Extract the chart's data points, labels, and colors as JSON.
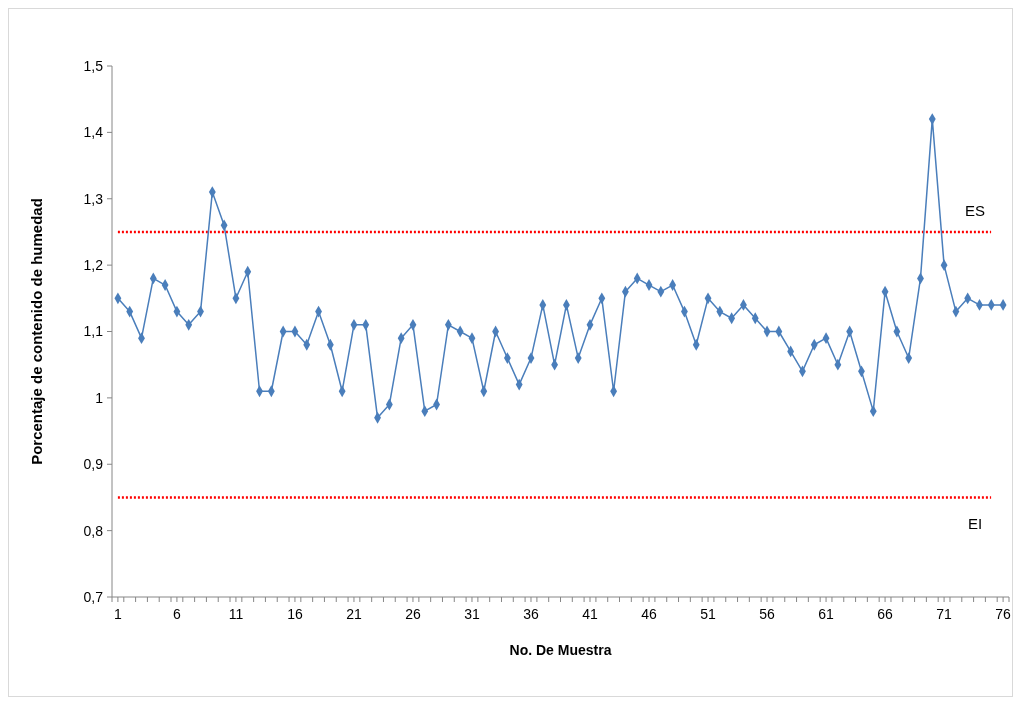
{
  "chart_data": {
    "type": "line",
    "xlabel": "No. De Muestra",
    "ylabel": "Porcentaje de contenido de humedad",
    "x": [
      1,
      2,
      3,
      4,
      5,
      6,
      7,
      8,
      9,
      10,
      11,
      12,
      13,
      14,
      15,
      16,
      17,
      18,
      19,
      20,
      21,
      22,
      23,
      24,
      25,
      26,
      27,
      28,
      29,
      30,
      31,
      32,
      33,
      34,
      35,
      36,
      37,
      38,
      39,
      40,
      41,
      42,
      43,
      44,
      45,
      46,
      47,
      48,
      49,
      50,
      51,
      52,
      53,
      54,
      55,
      56,
      57,
      58,
      59,
      60,
      61,
      62,
      63,
      64,
      65,
      66,
      67,
      68,
      69,
      70,
      71,
      72,
      73,
      74,
      75,
      76
    ],
    "xlim": [
      0.5,
      76.5
    ],
    "xticks": [
      1,
      6,
      11,
      16,
      21,
      26,
      31,
      36,
      41,
      46,
      51,
      56,
      61,
      66,
      71,
      76,
      {
        "value": 0.5,
        "label": null
      },
      {
        "value": 1.5,
        "label": null
      },
      {
        "value": 2.5,
        "label": null
      },
      {
        "value": 3.5,
        "label": null
      },
      {
        "value": 4.5,
        "label": null
      },
      {
        "value": 5.5,
        "label": null
      },
      {
        "value": 6.5,
        "label": null
      },
      {
        "value": 7.5,
        "label": null
      },
      {
        "value": 8.5,
        "label": null
      },
      {
        "value": 9.5,
        "label": null
      },
      {
        "value": 10.5,
        "label": null
      },
      {
        "value": 11.5,
        "label": null
      },
      {
        "value": 12.5,
        "label": null
      },
      {
        "value": 13.5,
        "label": null
      },
      {
        "value": 14.5,
        "label": null
      },
      {
        "value": 15.5,
        "label": null
      },
      {
        "value": 16.5,
        "label": null
      },
      {
        "value": 17.5,
        "label": null
      },
      {
        "value": 18.5,
        "label": null
      },
      {
        "value": 19.5,
        "label": null
      },
      {
        "value": 20.5,
        "label": null
      },
      {
        "value": 21.5,
        "label": null
      },
      {
        "value": 22.5,
        "label": null
      },
      {
        "value": 23.5,
        "label": null
      },
      {
        "value": 24.5,
        "label": null
      },
      {
        "value": 25.5,
        "label": null
      },
      {
        "value": 26.5,
        "label": null
      },
      {
        "value": 27.5,
        "label": null
      },
      {
        "value": 28.5,
        "label": null
      },
      {
        "value": 29.5,
        "label": null
      },
      {
        "value": 30.5,
        "label": null
      },
      {
        "value": 31.5,
        "label": null
      },
      {
        "value": 32.5,
        "label": null
      },
      {
        "value": 33.5,
        "label": null
      },
      {
        "value": 34.5,
        "label": null
      },
      {
        "value": 35.5,
        "label": null
      },
      {
        "value": 36.5,
        "label": null
      },
      {
        "value": 37.5,
        "label": null
      },
      {
        "value": 38.5,
        "label": null
      },
      {
        "value": 39.5,
        "label": null
      },
      {
        "value": 40.5,
        "label": null
      },
      {
        "value": 41.5,
        "label": null
      },
      {
        "value": 42.5,
        "label": null
      },
      {
        "value": 43.5,
        "label": null
      },
      {
        "value": 44.5,
        "label": null
      },
      {
        "value": 45.5,
        "label": null
      },
      {
        "value": 46.5,
        "label": null
      },
      {
        "value": 47.5,
        "label": null
      },
      {
        "value": 48.5,
        "label": null
      },
      {
        "value": 49.5,
        "label": null
      },
      {
        "value": 50.5,
        "label": null
      },
      {
        "value": 51.5,
        "label": null
      },
      {
        "value": 52.5,
        "label": null
      },
      {
        "value": 53.5,
        "label": null
      },
      {
        "value": 54.5,
        "label": null
      },
      {
        "value": 55.5,
        "label": null
      },
      {
        "value": 56.5,
        "label": null
      },
      {
        "value": 57.5,
        "label": null
      },
      {
        "value": 58.5,
        "label": null
      },
      {
        "value": 59.5,
        "label": null
      },
      {
        "value": 60.5,
        "label": null
      },
      {
        "value": 61.5,
        "label": null
      },
      {
        "value": 62.5,
        "label": null
      },
      {
        "value": 63.5,
        "label": null
      },
      {
        "value": 64.5,
        "label": null
      },
      {
        "value": 65.5,
        "label": null
      },
      {
        "value": 66.5,
        "label": null
      },
      {
        "value": 67.5,
        "label": null
      },
      {
        "value": 68.5,
        "label": null
      },
      {
        "value": 69.5,
        "label": null
      },
      {
        "value": 70.5,
        "label": null
      },
      {
        "value": 71.5,
        "label": null
      },
      {
        "value": 72.5,
        "label": null
      },
      {
        "value": 73.5,
        "label": null
      },
      {
        "value": 74.5,
        "label": null
      },
      {
        "value": 75.5,
        "label": null
      },
      {
        "value": 76.5,
        "label": null
      }
    ],
    "series": [
      {
        "color": "#4a7ebb",
        "values": [
          1.15,
          1.13,
          1.09,
          1.18,
          1.17,
          1.13,
          1.11,
          1.13,
          1.31,
          1.26,
          1.15,
          1.19,
          1.01,
          1.01,
          1.1,
          1.1,
          1.08,
          1.13,
          1.08,
          1.01,
          1.11,
          1.11,
          0.97,
          0.99,
          1.09,
          1.11,
          0.98,
          0.99,
          1.11,
          1.1,
          1.09,
          1.01,
          1.1,
          1.06,
          1.02,
          1.06,
          1.14,
          1.05,
          1.14,
          1.06,
          1.11,
          1.15,
          1.01,
          1.16,
          1.18,
          1.17,
          1.16,
          1.17,
          1.13,
          1.08,
          1.15,
          1.13,
          1.12,
          1.14,
          1.12,
          1.1,
          1.1,
          1.07,
          1.04,
          1.08,
          1.09,
          1.05,
          1.1,
          1.04,
          0.98,
          1.16,
          1.1,
          1.06,
          1.18,
          1.42,
          1.2,
          1.13,
          1.15,
          1.14,
          1.14,
          1.14
        ]
      }
    ],
    "ylim": [
      0.7,
      1.5
    ],
    "yticks": [
      {
        "value": 0.7,
        "label": "0,7"
      },
      {
        "value": 0.8,
        "label": "0,8"
      },
      {
        "value": 0.9,
        "label": "0,9"
      },
      {
        "value": 1,
        "label": "1"
      },
      {
        "value": 1.1,
        "label": "1,1"
      },
      {
        "value": 1.2,
        "label": "1,2"
      },
      {
        "value": 1.3,
        "label": "1,3"
      },
      {
        "value": 1.4,
        "label": "1,4"
      },
      {
        "value": 1.5,
        "label": "1,5"
      }
    ],
    "ref_lines": [
      {
        "axis": "y",
        "value": 1.25,
        "label": "ES",
        "color": "#ff0000",
        "line_style": "dotted"
      },
      {
        "axis": "y",
        "value": 0.85,
        "label": "EI",
        "color": "#ff0000",
        "line_style": "dotted"
      }
    ],
    "grid": false,
    "marker": "diamond",
    "line_style": "solid"
  }
}
